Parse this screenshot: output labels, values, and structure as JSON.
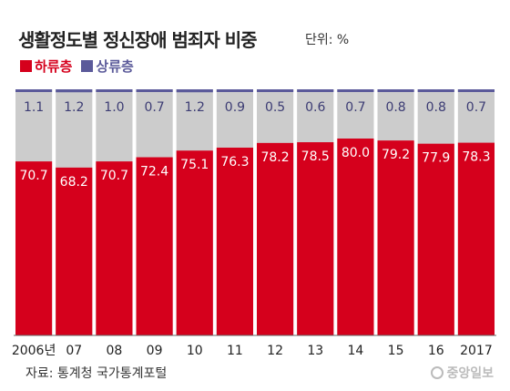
{
  "chart_data": {
    "type": "bar",
    "stacked": true,
    "title": "생활정도별 정신장애 범죄자 비중",
    "unit_label": "단위: %",
    "categories": [
      "2006년",
      "07",
      "08",
      "09",
      "10",
      "11",
      "12",
      "13",
      "14",
      "15",
      "16",
      "2017"
    ],
    "series": [
      {
        "name": "하류층",
        "color": "#d5001c",
        "values": [
          70.7,
          68.2,
          70.7,
          72.4,
          75.1,
          76.3,
          78.2,
          78.5,
          80.0,
          79.2,
          77.9,
          78.3
        ]
      },
      {
        "name": "상류층",
        "color": "#5b5a9a",
        "values": [
          1.1,
          1.2,
          1.0,
          0.7,
          1.2,
          0.9,
          0.5,
          0.6,
          0.7,
          0.8,
          0.8,
          0.7
        ]
      }
    ],
    "remainder_color": "#cccccc",
    "ylim": [
      0,
      100
    ],
    "grid": false,
    "legend_position": "top-left",
    "source": "자료: 통계청 국가통계포털"
  },
  "credit": "중앙일보"
}
